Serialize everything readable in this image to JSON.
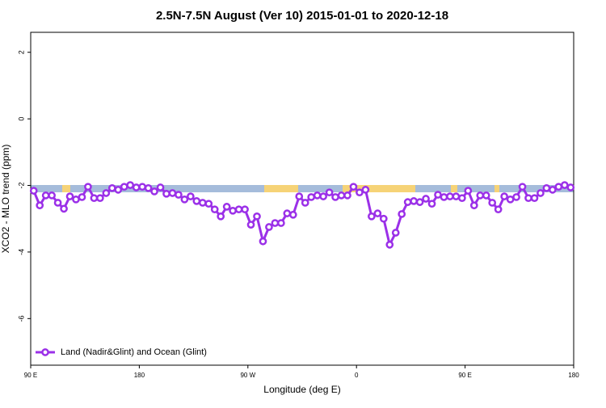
{
  "chart_data": {
    "type": "line",
    "title": "2.5N-7.5N August (Ver 10)   2015-01-01 to 2020-12-18",
    "x_label": "Longitude (deg E)",
    "y_label": "XCO2 - MLO trend (ppm)",
    "x": [
      92.5,
      97.5,
      102.5,
      107.5,
      112.5,
      117.5,
      122.5,
      127.5,
      132.5,
      137.5,
      142.5,
      147.5,
      152.5,
      157.5,
      162.5,
      167.5,
      172.5,
      177.5,
      182.5,
      187.5,
      192.5,
      197.5,
      202.5,
      207.5,
      212.5,
      217.5,
      222.5,
      227.5,
      232.5,
      237.5,
      242.5,
      247.5,
      252.5,
      257.5,
      262.5,
      267.5,
      272.5,
      277.5,
      282.5,
      287.5,
      292.5,
      297.5,
      302.5,
      307.5,
      312.5,
      317.5,
      322.5,
      327.5,
      332.5,
      337.5,
      342.5,
      347.5,
      352.5,
      357.5,
      362.5,
      367.5,
      372.5,
      377.5,
      382.5,
      387.5,
      392.5,
      397.5,
      402.5,
      407.5,
      412.5,
      417.5,
      422.5,
      427.5,
      432.5,
      437.5,
      442.5,
      447.5,
      452.5,
      457.5,
      462.5,
      467.5,
      472.5,
      477.5,
      482.5,
      487.5,
      492.5,
      497.5,
      502.5,
      507.5,
      512.5,
      517.5,
      522.5,
      527.5,
      532.5,
      537.5
    ],
    "series": [
      {
        "name": "Land (Nadir&Glint) and Ocean (Glint)",
        "color": "#9b30e8",
        "values": [
          -2.16,
          -2.6,
          -2.3,
          -2.3,
          -2.52,
          -2.7,
          -2.33,
          -2.42,
          -2.35,
          -2.04,
          -2.38,
          -2.38,
          -2.23,
          -2.08,
          -2.13,
          -2.04,
          -1.99,
          -2.06,
          -2.04,
          -2.08,
          -2.18,
          -2.06,
          -2.25,
          -2.23,
          -2.28,
          -2.42,
          -2.33,
          -2.47,
          -2.52,
          -2.55,
          -2.72,
          -2.93,
          -2.64,
          -2.76,
          -2.72,
          -2.72,
          -3.18,
          -2.93,
          -3.68,
          -3.25,
          -3.13,
          -3.13,
          -2.84,
          -2.88,
          -2.33,
          -2.52,
          -2.35,
          -2.3,
          -2.33,
          -2.21,
          -2.35,
          -2.3,
          -2.3,
          -2.04,
          -2.21,
          -2.13,
          -2.93,
          -2.84,
          -3.0,
          -3.78,
          -3.42,
          -2.86,
          -2.5,
          -2.47,
          -2.5,
          -2.4,
          -2.55,
          -2.28,
          -2.35,
          -2.33,
          -2.33,
          -2.38,
          -2.16,
          -2.6,
          -2.3,
          -2.3,
          -2.52,
          -2.72,
          -2.33,
          -2.42,
          -2.35,
          -2.04,
          -2.38,
          -2.38,
          -2.23,
          -2.08,
          -2.13,
          -2.04,
          -1.99,
          -2.06
        ]
      }
    ],
    "xlim": [
      90,
      540
    ],
    "xticks": [
      {
        "value": 90,
        "label": "90 E"
      },
      180,
      {
        "value": 270,
        "label": "90 W"
      },
      {
        "value": 360,
        "label": "0"
      },
      {
        "value": 450,
        "label": "90 E"
      },
      {
        "value": 540,
        "label": "180"
      }
    ],
    "ylim": [
      -7.4,
      2.6
    ],
    "yticks": [
      2,
      0,
      -2,
      -4,
      -6
    ],
    "legend": "bottom-left"
  }
}
